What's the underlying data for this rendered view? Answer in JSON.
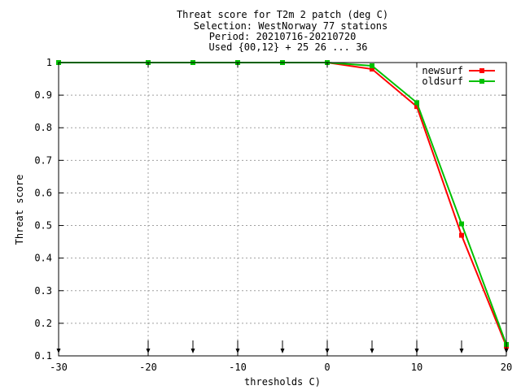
{
  "chart_data": {
    "type": "line",
    "title_lines": [
      "Threat score  for T2m 2 patch (deg C)",
      "Selection: WestNorway     77 stations",
      "Period: 20210716-20210720",
      "Used {00,12} + 25 26 ... 36"
    ],
    "xlabel": "thresholds C)",
    "ylabel": "Threat score",
    "xlim": [
      -30,
      20
    ],
    "ylim": [
      0.1,
      1.0
    ],
    "xticks": [
      -30,
      -20,
      -10,
      0,
      10,
      20
    ],
    "xtick_labels": [
      "-30",
      "-20",
      "-10",
      "0",
      "10",
      "20"
    ],
    "yticks": [
      0.1,
      0.2,
      0.3,
      0.4,
      0.5,
      0.6,
      0.7,
      0.8,
      0.9,
      1.0
    ],
    "ytick_labels": [
      "0.1",
      "0.2",
      "0.3",
      "0.4",
      "0.5",
      "0.6",
      "0.7",
      "0.8",
      "0.9",
      "1"
    ],
    "grid": true,
    "legend_position": "top-right",
    "threshold_markers": [
      -30,
      -20,
      -15,
      -10,
      -5,
      0,
      5,
      10,
      15,
      20
    ],
    "x": [
      -30,
      -20,
      -15,
      -10,
      -5,
      0,
      5,
      10,
      15,
      20
    ],
    "series": [
      {
        "name": "newsurf",
        "color": "#ff0000",
        "values": [
          1.0,
          1.0,
          1.0,
          1.0,
          1.0,
          1.0,
          0.98,
          0.865,
          0.47,
          0.13
        ]
      },
      {
        "name": "oldsurf",
        "color": "#00c000",
        "values": [
          1.0,
          1.0,
          1.0,
          1.0,
          1.0,
          1.0,
          0.99,
          0.877,
          0.505,
          0.135
        ]
      }
    ]
  }
}
